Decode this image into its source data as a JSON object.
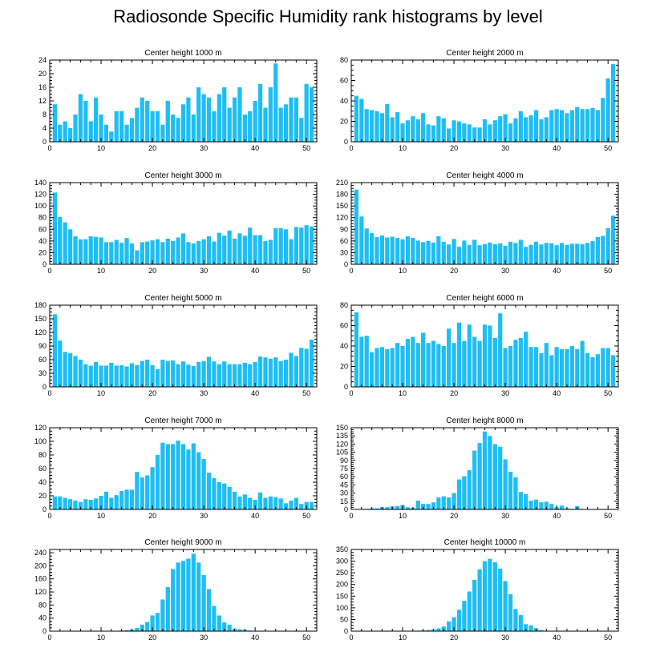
{
  "figure": {
    "title": "Radiosonde Specific Humidity rank histograms by level",
    "bar_color": "#1EBEF5",
    "axis_color": "#000000"
  },
  "chart_data": [
    {
      "type": "bar",
      "title": "Center height 1000 m",
      "xlim": [
        0,
        52
      ],
      "ylim": [
        0,
        24
      ],
      "xticks": [
        0,
        10,
        20,
        30,
        40,
        50
      ],
      "yticks": [
        0,
        4,
        8,
        12,
        16,
        20,
        24
      ],
      "x": [
        1,
        2,
        3,
        4,
        5,
        6,
        7,
        8,
        9,
        10,
        11,
        12,
        13,
        14,
        15,
        16,
        17,
        18,
        19,
        20,
        21,
        22,
        23,
        24,
        25,
        26,
        27,
        28,
        29,
        30,
        31,
        32,
        33,
        34,
        35,
        36,
        37,
        38,
        39,
        40,
        41,
        42,
        43,
        44,
        45,
        46,
        47,
        48,
        49,
        50,
        51
      ],
      "values": [
        11,
        5,
        6,
        4,
        8,
        14,
        12,
        6,
        13,
        8,
        5,
        3,
        9,
        9,
        5,
        7,
        10,
        13,
        12,
        9,
        9,
        5,
        12,
        8,
        7,
        11,
        13,
        8,
        16,
        14,
        13,
        9,
        14,
        16,
        10,
        13,
        16,
        8,
        9,
        12,
        17,
        10,
        16,
        23,
        10,
        11,
        13,
        13,
        7,
        17,
        16
      ]
    },
    {
      "type": "bar",
      "title": "Center height 2000 m",
      "xlim": [
        0,
        52
      ],
      "ylim": [
        0,
        80
      ],
      "xticks": [
        0,
        10,
        20,
        30,
        40,
        50
      ],
      "yticks": [
        0,
        20,
        40,
        60,
        80
      ],
      "x": [
        1,
        2,
        3,
        4,
        5,
        6,
        7,
        8,
        9,
        10,
        11,
        12,
        13,
        14,
        15,
        16,
        17,
        18,
        19,
        20,
        21,
        22,
        23,
        24,
        25,
        26,
        27,
        28,
        29,
        30,
        31,
        32,
        33,
        34,
        35,
        36,
        37,
        38,
        39,
        40,
        41,
        42,
        43,
        44,
        45,
        46,
        47,
        48,
        49,
        50,
        51
      ],
      "values": [
        45,
        42,
        32,
        31,
        30,
        28,
        37,
        24,
        29,
        18,
        21,
        25,
        22,
        28,
        17,
        16,
        25,
        23,
        13,
        21,
        20,
        18,
        17,
        14,
        14,
        22,
        17,
        21,
        25,
        27,
        18,
        23,
        30,
        24,
        26,
        31,
        22,
        24,
        31,
        32,
        31,
        28,
        31,
        34,
        32,
        32,
        33,
        31,
        43,
        62,
        76
      ]
    },
    {
      "type": "bar",
      "title": "Center height 3000 m",
      "xlim": [
        0,
        52
      ],
      "ylim": [
        0,
        140
      ],
      "xticks": [
        0,
        10,
        20,
        30,
        40,
        50
      ],
      "yticks": [
        0,
        20,
        40,
        60,
        80,
        100,
        120,
        140
      ],
      "x": [
        1,
        2,
        3,
        4,
        5,
        6,
        7,
        8,
        9,
        10,
        11,
        12,
        13,
        14,
        15,
        16,
        17,
        18,
        19,
        20,
        21,
        22,
        23,
        24,
        25,
        26,
        27,
        28,
        29,
        30,
        31,
        32,
        33,
        34,
        35,
        36,
        37,
        38,
        39,
        40,
        41,
        42,
        43,
        44,
        45,
        46,
        47,
        48,
        49,
        50,
        51
      ],
      "values": [
        123,
        81,
        72,
        60,
        48,
        43,
        43,
        48,
        47,
        46,
        38,
        38,
        42,
        37,
        45,
        36,
        24,
        38,
        39,
        41,
        43,
        38,
        44,
        40,
        46,
        53,
        38,
        36,
        40,
        43,
        48,
        39,
        54,
        49,
        58,
        44,
        53,
        49,
        63,
        50,
        50,
        40,
        42,
        62,
        62,
        60,
        43,
        64,
        63,
        67,
        65
      ]
    },
    {
      "type": "bar",
      "title": "Center height 4000 m",
      "xlim": [
        0,
        52
      ],
      "ylim": [
        0,
        210
      ],
      "xticks": [
        0,
        10,
        20,
        30,
        40,
        50
      ],
      "yticks": [
        0,
        30,
        60,
        90,
        120,
        150,
        180,
        210
      ],
      "x": [
        1,
        2,
        3,
        4,
        5,
        6,
        7,
        8,
        9,
        10,
        11,
        12,
        13,
        14,
        15,
        16,
        17,
        18,
        19,
        20,
        21,
        22,
        23,
        24,
        25,
        26,
        27,
        28,
        29,
        30,
        31,
        32,
        33,
        34,
        35,
        36,
        37,
        38,
        39,
        40,
        41,
        42,
        43,
        44,
        45,
        46,
        47,
        48,
        49,
        50,
        51
      ],
      "values": [
        192,
        123,
        92,
        80,
        70,
        74,
        69,
        71,
        68,
        64,
        72,
        68,
        61,
        57,
        60,
        56,
        72,
        58,
        51,
        65,
        45,
        61,
        50,
        63,
        49,
        52,
        56,
        52,
        54,
        48,
        58,
        55,
        63,
        45,
        50,
        58,
        51,
        55,
        54,
        49,
        55,
        50,
        53,
        53,
        52,
        55,
        60,
        70,
        73,
        93,
        125
      ]
    },
    {
      "type": "bar",
      "title": "Center height 5000 m",
      "xlim": [
        0,
        52
      ],
      "ylim": [
        0,
        180
      ],
      "xticks": [
        0,
        10,
        20,
        30,
        40,
        50
      ],
      "yticks": [
        0,
        30,
        60,
        90,
        120,
        150,
        180
      ],
      "x": [
        1,
        2,
        3,
        4,
        5,
        6,
        7,
        8,
        9,
        10,
        11,
        12,
        13,
        14,
        15,
        16,
        17,
        18,
        19,
        20,
        21,
        22,
        23,
        24,
        25,
        26,
        27,
        28,
        29,
        30,
        31,
        32,
        33,
        34,
        35,
        36,
        37,
        38,
        39,
        40,
        41,
        42,
        43,
        44,
        45,
        46,
        47,
        48,
        49,
        50,
        51
      ],
      "values": [
        160,
        102,
        77,
        74,
        68,
        60,
        50,
        47,
        55,
        47,
        47,
        53,
        47,
        48,
        45,
        52,
        48,
        57,
        60,
        48,
        39,
        60,
        57,
        58,
        50,
        56,
        49,
        46,
        55,
        57,
        66,
        56,
        50,
        56,
        50,
        50,
        50,
        53,
        50,
        55,
        67,
        65,
        62,
        65,
        57,
        60,
        75,
        68,
        86,
        84,
        104
      ]
    },
    {
      "type": "bar",
      "title": "Center height 6000 m",
      "xlim": [
        0,
        52
      ],
      "ylim": [
        0,
        80
      ],
      "xticks": [
        0,
        10,
        20,
        30,
        40,
        50
      ],
      "yticks": [
        0,
        20,
        40,
        60,
        80
      ],
      "x": [
        1,
        2,
        3,
        4,
        5,
        6,
        7,
        8,
        9,
        10,
        11,
        12,
        13,
        14,
        15,
        16,
        17,
        18,
        19,
        20,
        21,
        22,
        23,
        24,
        25,
        26,
        27,
        28,
        29,
        30,
        31,
        32,
        33,
        34,
        35,
        36,
        37,
        38,
        39,
        40,
        41,
        42,
        43,
        44,
        45,
        46,
        47,
        48,
        49,
        50,
        51
      ],
      "values": [
        73,
        49,
        50,
        34,
        38,
        39,
        37,
        38,
        43,
        40,
        47,
        49,
        43,
        53,
        43,
        45,
        42,
        40,
        57,
        43,
        63,
        45,
        61,
        49,
        45,
        61,
        60,
        48,
        72,
        38,
        40,
        46,
        48,
        54,
        39,
        39,
        33,
        43,
        31,
        39,
        37,
        37,
        40,
        37,
        45,
        33,
        29,
        32,
        38,
        38,
        31
      ]
    },
    {
      "type": "bar",
      "title": "Center height 7000 m",
      "xlim": [
        0,
        52
      ],
      "ylim": [
        0,
        120
      ],
      "xticks": [
        0,
        10,
        20,
        30,
        40,
        50
      ],
      "yticks": [
        0,
        20,
        40,
        60,
        80,
        100,
        120
      ],
      "x": [
        1,
        2,
        3,
        4,
        5,
        6,
        7,
        8,
        9,
        10,
        11,
        12,
        13,
        14,
        15,
        16,
        17,
        18,
        19,
        20,
        21,
        22,
        23,
        24,
        25,
        26,
        27,
        28,
        29,
        30,
        31,
        32,
        33,
        34,
        35,
        36,
        37,
        38,
        39,
        40,
        41,
        42,
        43,
        44,
        45,
        46,
        47,
        48,
        49,
        50,
        51
      ],
      "values": [
        19,
        19,
        17,
        15,
        13,
        11,
        15,
        14,
        16,
        20,
        26,
        17,
        21,
        27,
        29,
        29,
        55,
        47,
        50,
        62,
        80,
        98,
        96,
        96,
        101,
        96,
        88,
        97,
        84,
        74,
        54,
        46,
        40,
        38,
        33,
        26,
        19,
        22,
        17,
        14,
        25,
        17,
        19,
        18,
        16,
        9,
        13,
        17,
        8,
        11,
        11
      ]
    },
    {
      "type": "bar",
      "title": "Center height 8000 m",
      "xlim": [
        0,
        52
      ],
      "ylim": [
        0,
        150
      ],
      "xticks": [
        0,
        10,
        20,
        30,
        40,
        50
      ],
      "yticks": [
        0,
        15,
        30,
        45,
        60,
        75,
        90,
        105,
        120,
        135,
        150
      ],
      "x": [
        1,
        2,
        3,
        4,
        5,
        6,
        7,
        8,
        9,
        10,
        11,
        12,
        13,
        14,
        15,
        16,
        17,
        18,
        19,
        20,
        21,
        22,
        23,
        24,
        25,
        26,
        27,
        28,
        29,
        30,
        31,
        32,
        33,
        34,
        35,
        36,
        37,
        38,
        39,
        40,
        41,
        42,
        43,
        44,
        45,
        46,
        47,
        48,
        49,
        50,
        51
      ],
      "values": [
        0,
        0,
        1,
        2,
        2,
        4,
        4,
        6,
        6,
        8,
        4,
        3,
        16,
        10,
        10,
        13,
        22,
        24,
        22,
        30,
        55,
        61,
        72,
        108,
        122,
        143,
        135,
        120,
        115,
        92,
        69,
        59,
        32,
        28,
        16,
        18,
        13,
        14,
        10,
        4,
        7,
        2,
        1,
        6,
        1,
        0,
        0,
        0,
        0,
        0,
        0
      ]
    },
    {
      "type": "bar",
      "title": "Center height 9000 m",
      "xlim": [
        0,
        52
      ],
      "ylim": [
        0,
        250
      ],
      "xticks": [
        0,
        10,
        20,
        30,
        40,
        50
      ],
      "yticks": [
        0,
        40,
        80,
        120,
        160,
        200,
        240
      ],
      "x": [
        1,
        2,
        3,
        4,
        5,
        6,
        7,
        8,
        9,
        10,
        11,
        12,
        13,
        14,
        15,
        16,
        17,
        18,
        19,
        20,
        21,
        22,
        23,
        24,
        25,
        26,
        27,
        28,
        29,
        30,
        31,
        32,
        33,
        34,
        35,
        36,
        37,
        38,
        39,
        40,
        41,
        42,
        43,
        44,
        45,
        46,
        47,
        48,
        49,
        50,
        51
      ],
      "values": [
        0,
        0,
        0,
        0,
        0,
        0,
        0,
        0,
        0,
        0,
        0,
        0,
        1,
        2,
        3,
        5,
        10,
        20,
        28,
        48,
        56,
        97,
        135,
        190,
        210,
        215,
        222,
        237,
        210,
        172,
        129,
        77,
        48,
        27,
        20,
        8,
        6,
        4,
        2,
        1,
        0,
        0,
        0,
        0,
        0,
        0,
        0,
        0,
        0,
        0,
        0
      ]
    },
    {
      "type": "bar",
      "title": "Center height 10000 m",
      "xlim": [
        0,
        52
      ],
      "ylim": [
        0,
        350
      ],
      "xticks": [
        0,
        10,
        20,
        30,
        40,
        50
      ],
      "yticks": [
        0,
        50,
        100,
        150,
        200,
        250,
        300,
        350
      ],
      "x": [
        1,
        2,
        3,
        4,
        5,
        6,
        7,
        8,
        9,
        10,
        11,
        12,
        13,
        14,
        15,
        16,
        17,
        18,
        19,
        20,
        21,
        22,
        23,
        24,
        25,
        26,
        27,
        28,
        29,
        30,
        31,
        32,
        33,
        34,
        35,
        36,
        37,
        38,
        39,
        40,
        41,
        42,
        43,
        44,
        45,
        46,
        47,
        48,
        49,
        50,
        51
      ],
      "values": [
        0,
        0,
        0,
        0,
        0,
        0,
        0,
        0,
        0,
        0,
        0,
        0,
        2,
        3,
        5,
        8,
        12,
        20,
        42,
        60,
        92,
        130,
        170,
        220,
        265,
        300,
        310,
        295,
        268,
        215,
        159,
        95,
        69,
        30,
        25,
        13,
        5,
        2,
        0,
        0,
        0,
        0,
        0,
        0,
        0,
        0,
        0,
        0,
        0,
        0,
        0
      ]
    }
  ]
}
